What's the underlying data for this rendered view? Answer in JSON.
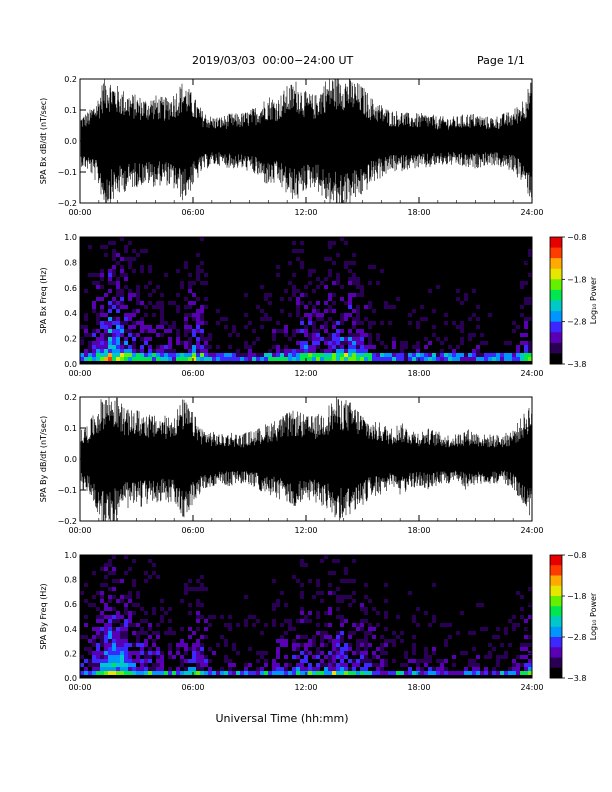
{
  "header": {
    "title": "2019/03/03  00:00−24:00 UT",
    "page": "Page 1/1"
  },
  "colors": {
    "trace": "#000000",
    "background": "#000000",
    "colormap": [
      "#000000",
      "#2a0055",
      "#5a00b4",
      "#3c28ff",
      "#0096ff",
      "#00c8c8",
      "#00e650",
      "#64f000",
      "#e6e600",
      "#ffaa00",
      "#ff3c00",
      "#e60000"
    ]
  },
  "chart_data": [
    {
      "type": "line",
      "ylabel": "SPA Bx dB/dt (nT/sec)",
      "xlim": [
        0,
        24
      ],
      "ylim": [
        -0.2,
        0.2
      ],
      "yticks": [
        "0.2",
        "0.1",
        "0.0",
        "−0.1",
        "−0.2"
      ],
      "xticks": [
        "00:00",
        "06:00",
        "12:00",
        "18:00",
        "24:00"
      ],
      "series": [
        {
          "x": [
            0,
            0.5,
            1,
            1.3,
            1.7,
            2,
            2.5,
            3,
            3.5,
            4,
            4.5,
            5,
            5.5,
            6,
            6.5,
            7,
            7.5,
            8,
            8.5,
            9,
            9.5,
            10,
            10.5,
            11,
            11.5,
            12,
            12.5,
            13,
            13.5,
            14,
            14.5,
            15,
            15.5,
            16,
            16.5,
            17,
            17.5,
            18,
            18.5,
            19,
            19.5,
            20,
            20.5,
            21,
            21.5,
            22,
            22.5,
            23,
            23.5,
            24
          ],
          "amplitude": [
            0.08,
            0.1,
            0.15,
            0.22,
            0.2,
            0.18,
            0.16,
            0.15,
            0.14,
            0.15,
            0.14,
            0.16,
            0.2,
            0.15,
            0.1,
            0.08,
            0.08,
            0.09,
            0.09,
            0.1,
            0.12,
            0.15,
            0.14,
            0.18,
            0.2,
            0.16,
            0.15,
            0.2,
            0.22,
            0.22,
            0.2,
            0.18,
            0.14,
            0.12,
            0.1,
            0.1,
            0.09,
            0.09,
            0.09,
            0.08,
            0.08,
            0.08,
            0.09,
            0.09,
            0.08,
            0.08,
            0.09,
            0.1,
            0.14,
            0.2
          ]
        }
      ]
    },
    {
      "type": "heatmap",
      "ylabel": "SPA Bx Freq (Hz)",
      "xlim": [
        0,
        24
      ],
      "ylim": [
        0,
        1.0
      ],
      "yticks": [
        "1.0",
        "0.8",
        "0.6",
        "0.4",
        "0.2",
        "0.0"
      ],
      "xticks": [
        "00:00",
        "06:00",
        "12:00",
        "18:00",
        "24:00"
      ],
      "colorbar": {
        "label": "Log₁₀ Power",
        "range": [
          -3.8,
          -0.8
        ],
        "ticks": [
          "−0.8",
          "−1.8",
          "−2.8",
          "−3.8"
        ]
      },
      "activity": [
        0.35,
        0.45,
        0.6,
        0.8,
        0.7,
        0.6,
        0.5,
        0.45,
        0.4,
        0.4,
        0.35,
        0.4,
        0.55,
        0.5,
        0.3,
        0.25,
        0.25,
        0.25,
        0.28,
        0.3,
        0.35,
        0.4,
        0.35,
        0.45,
        0.55,
        0.5,
        0.5,
        0.6,
        0.62,
        0.6,
        0.5,
        0.45,
        0.35,
        0.3,
        0.3,
        0.3,
        0.32,
        0.3,
        0.32,
        0.3,
        0.28,
        0.28,
        0.3,
        0.3,
        0.25,
        0.25,
        0.25,
        0.28,
        0.45,
        0.6
      ]
    },
    {
      "type": "line",
      "ylabel": "SPA By dB/dt (nT/sec)",
      "xlim": [
        0,
        24
      ],
      "ylim": [
        -0.2,
        0.2
      ],
      "yticks": [
        "0.2",
        "0.1",
        "0.0",
        "−0.1",
        "−0.2"
      ],
      "xticks": [
        "00:00",
        "06:00",
        "12:00",
        "18:00",
        "24:00"
      ],
      "series": [
        {
          "x": [
            0,
            0.5,
            1,
            1.3,
            1.7,
            2,
            2.5,
            3,
            3.5,
            4,
            4.5,
            5,
            5.5,
            6,
            6.5,
            7,
            7.5,
            8,
            8.5,
            9,
            9.5,
            10,
            10.5,
            11,
            11.5,
            12,
            12.5,
            13,
            13.5,
            14,
            14.5,
            15,
            15.5,
            16,
            16.5,
            17,
            17.5,
            18,
            18.5,
            19,
            19.5,
            20,
            20.5,
            21,
            21.5,
            22,
            22.5,
            23,
            23.5,
            24
          ],
          "amplitude": [
            0.09,
            0.12,
            0.18,
            0.22,
            0.22,
            0.2,
            0.16,
            0.16,
            0.15,
            0.14,
            0.14,
            0.15,
            0.2,
            0.15,
            0.1,
            0.09,
            0.08,
            0.09,
            0.08,
            0.09,
            0.1,
            0.12,
            0.13,
            0.15,
            0.16,
            0.14,
            0.14,
            0.16,
            0.2,
            0.2,
            0.18,
            0.15,
            0.12,
            0.12,
            0.1,
            0.12,
            0.1,
            0.09,
            0.1,
            0.09,
            0.08,
            0.08,
            0.1,
            0.09,
            0.08,
            0.08,
            0.08,
            0.1,
            0.14,
            0.2
          ]
        }
      ]
    },
    {
      "type": "heatmap",
      "ylabel": "SPA By Freq (Hz)",
      "xlim": [
        0,
        24
      ],
      "ylim": [
        0,
        1.0
      ],
      "yticks": [
        "1.0",
        "0.8",
        "0.6",
        "0.4",
        "0.2",
        "0.0"
      ],
      "xticks": [
        "00:00",
        "06:00",
        "12:00",
        "18:00",
        "24:00"
      ],
      "colorbar": {
        "label": "Log₁₀ Power",
        "range": [
          -3.8,
          -0.8
        ],
        "ticks": [
          "−0.8",
          "−1.8",
          "−2.8",
          "−3.8"
        ]
      },
      "activity": [
        0.4,
        0.45,
        0.6,
        0.8,
        0.75,
        0.6,
        0.5,
        0.5,
        0.45,
        0.4,
        0.35,
        0.4,
        0.55,
        0.5,
        0.35,
        0.3,
        0.28,
        0.3,
        0.3,
        0.3,
        0.35,
        0.4,
        0.4,
        0.45,
        0.5,
        0.45,
        0.45,
        0.55,
        0.6,
        0.55,
        0.5,
        0.45,
        0.38,
        0.35,
        0.33,
        0.35,
        0.35,
        0.33,
        0.35,
        0.32,
        0.3,
        0.3,
        0.32,
        0.32,
        0.28,
        0.28,
        0.28,
        0.3,
        0.45,
        0.6
      ]
    }
  ],
  "xlabel": "Universal Time (hh:mm)"
}
